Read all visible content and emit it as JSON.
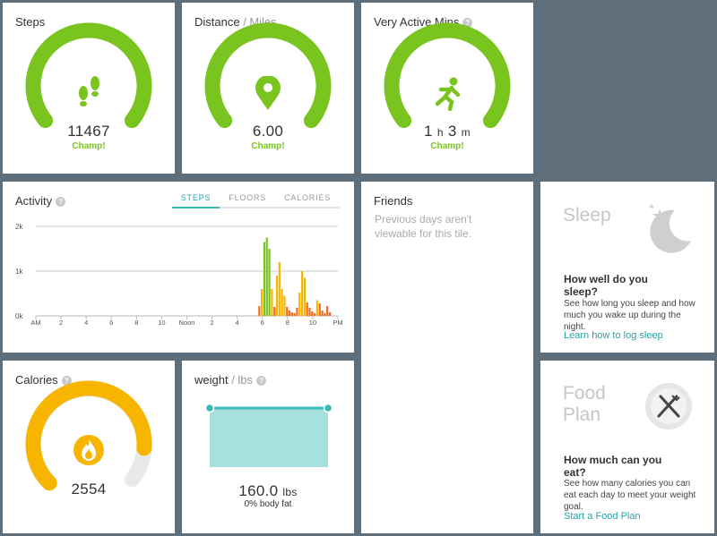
{
  "steps": {
    "title": "Steps",
    "value": "11467",
    "status": "Champ!",
    "icon": "footprints-icon",
    "color": "#7ac41f"
  },
  "distance": {
    "title": "Distance",
    "unit": " / Miles",
    "value": "6.00",
    "status": "Champ!",
    "icon": "map-pin-icon"
  },
  "very_active": {
    "title": "Very Active Mins",
    "hours": "1",
    "h_label": "h",
    "mins": "3",
    "m_label": "m",
    "status": "Champ!",
    "icon": "running-person-icon"
  },
  "activity": {
    "title": "Activity",
    "tabs": [
      "STEPS",
      "FLOORS",
      "CALORIES"
    ],
    "active_tab": "STEPS",
    "y_labels": [
      "2k",
      "1k",
      "0k"
    ],
    "x_labels": [
      "AM",
      "2",
      "4",
      "6",
      "8",
      "10",
      "Noon",
      "2",
      "4",
      "6",
      "8",
      "10",
      "PM"
    ]
  },
  "chart_data": {
    "type": "bar",
    "title": "Activity",
    "xlabel": "",
    "ylabel": "",
    "ylim": [
      0,
      2000
    ],
    "x_range_hours": [
      0,
      24
    ],
    "grid": true,
    "series": [
      {
        "hours": [
          17.75,
          17.95,
          18.15,
          18.35,
          18.55,
          18.75,
          18.95,
          19.15,
          19.35,
          19.55,
          19.75,
          19.95,
          20.15,
          20.35,
          20.55,
          20.75,
          20.95,
          21.15,
          21.35,
          21.55,
          21.75,
          21.95,
          22.15,
          22.35,
          22.55,
          22.75,
          22.95,
          23.15,
          23.35
        ],
        "values": [
          220,
          600,
          1650,
          1750,
          1500,
          600,
          200,
          900,
          1200,
          600,
          450,
          200,
          120,
          80,
          60,
          180,
          520,
          1000,
          850,
          300,
          180,
          100,
          60,
          350,
          280,
          120,
          60,
          220,
          80
        ]
      }
    ]
  },
  "friends": {
    "title": "Friends",
    "message": "Previous days aren't viewable for this tile."
  },
  "sleep": {
    "title": "Sleep",
    "question": "How well do you sleep?",
    "desc": "See how long you sleep and how much you wake up during the night.",
    "link": "Learn how to log sleep",
    "icon": "moon-star-icon"
  },
  "calories": {
    "title": "Calories",
    "value": "2554",
    "icon": "flame-icon",
    "progress": 0.85
  },
  "weight": {
    "title": "weight",
    "unit": " / lbs",
    "value": "160.0",
    "value_unit": "lbs",
    "body_fat": "0% body fat"
  },
  "food": {
    "title_line1": "Food",
    "title_line2": "Plan",
    "question": "How much can you eat?",
    "desc": "See how many calories you can eat each day to meet your weight goal.",
    "link": "Start a Food Plan",
    "icon": "fork-knife-icon"
  },
  "help_glyph": "?"
}
